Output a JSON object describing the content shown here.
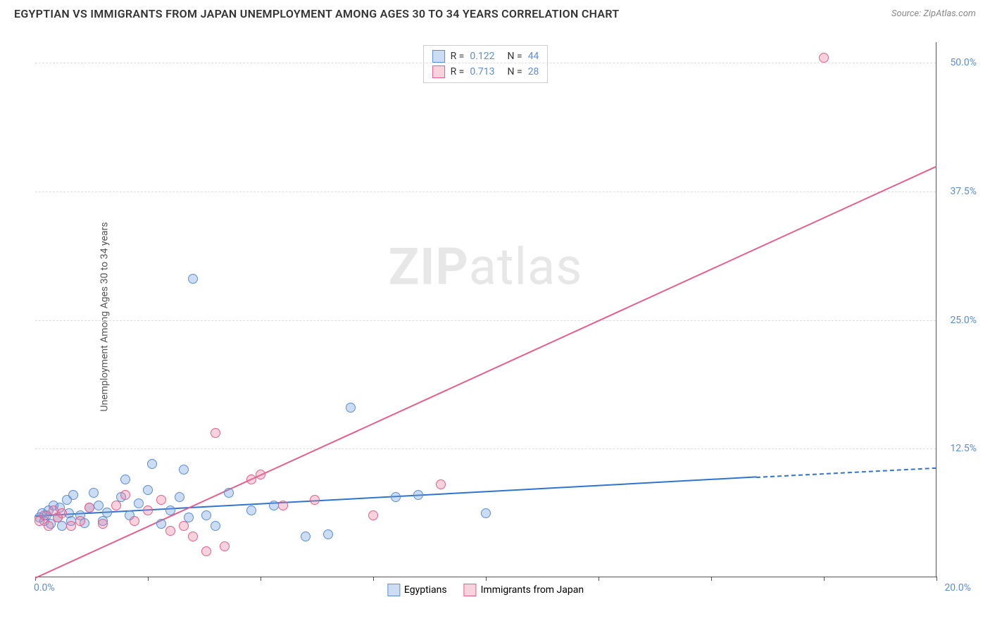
{
  "header": {
    "title": "EGYPTIAN VS IMMIGRANTS FROM JAPAN UNEMPLOYMENT AMONG AGES 30 TO 34 YEARS CORRELATION CHART",
    "source": "Source: ZipAtlas.com"
  },
  "chart": {
    "type": "scatter",
    "background_color": "#ffffff",
    "grid_color": "#dddddd",
    "axis_color": "#555555",
    "watermark_prefix": "ZIP",
    "watermark_suffix": "atlas",
    "y_axis_label": "Unemployment Among Ages 30 to 34 years",
    "y_axis_label_fontsize": 14,
    "xlim": [
      0,
      20
    ],
    "ylim": [
      0,
      52
    ],
    "x_ticks": [
      0,
      2.5,
      5,
      7.5,
      10,
      12.5,
      15,
      17.5,
      20
    ],
    "x_tick_labels": {
      "0": "0.0%",
      "20": "20.0%"
    },
    "y_ticks": [
      12.5,
      25,
      37.5,
      50
    ],
    "y_tick_labels": [
      "12.5%",
      "25.0%",
      "37.5%",
      "50.0%"
    ],
    "tick_label_color": "#5b8dd6",
    "tick_label_fontsize": 14,
    "series": [
      {
        "name": "Egyptians",
        "color_fill": "rgba(108,159,220,0.35)",
        "color_stroke": "#5b8dd6",
        "trend_color": "#2e74d0",
        "marker_size": 14,
        "R": "0.122",
        "N": "44",
        "trend": {
          "x1": 0,
          "y1": 6.0,
          "x2": 16,
          "y2": 9.8,
          "extend_x2": 20,
          "extend_y2": 10.7
        },
        "points": [
          [
            0.1,
            5.8
          ],
          [
            0.15,
            6.2
          ],
          [
            0.2,
            5.5
          ],
          [
            0.25,
            6.0
          ],
          [
            0.3,
            6.5
          ],
          [
            0.35,
            5.2
          ],
          [
            0.4,
            7.0
          ],
          [
            0.5,
            5.8
          ],
          [
            0.55,
            6.8
          ],
          [
            0.6,
            5.0
          ],
          [
            0.7,
            7.5
          ],
          [
            0.75,
            6.2
          ],
          [
            0.8,
            5.5
          ],
          [
            0.85,
            8.0
          ],
          [
            1.0,
            6.0
          ],
          [
            1.1,
            5.3
          ],
          [
            1.2,
            6.8
          ],
          [
            1.3,
            8.2
          ],
          [
            1.4,
            7.0
          ],
          [
            1.5,
            5.5
          ],
          [
            1.6,
            6.3
          ],
          [
            1.9,
            7.8
          ],
          [
            2.0,
            9.5
          ],
          [
            2.1,
            6.0
          ],
          [
            2.3,
            7.2
          ],
          [
            2.5,
            8.5
          ],
          [
            2.6,
            11.0
          ],
          [
            2.8,
            5.2
          ],
          [
            3.0,
            6.5
          ],
          [
            3.2,
            7.8
          ],
          [
            3.3,
            10.5
          ],
          [
            3.4,
            5.8
          ],
          [
            3.5,
            29.0
          ],
          [
            3.8,
            6.0
          ],
          [
            4.0,
            5.0
          ],
          [
            4.3,
            8.2
          ],
          [
            4.8,
            6.5
          ],
          [
            5.3,
            7.0
          ],
          [
            6.0,
            4.0
          ],
          [
            6.5,
            4.2
          ],
          [
            7.0,
            16.5
          ],
          [
            8.0,
            7.8
          ],
          [
            8.5,
            8.0
          ],
          [
            10.0,
            6.2
          ]
        ]
      },
      {
        "name": "Immigrants from Japan",
        "color_fill": "rgba(236,128,160,0.35)",
        "color_stroke": "#e85d8a",
        "trend_color": "#e85d8a",
        "marker_size": 14,
        "R": "0.713",
        "N": "28",
        "trend": {
          "x1": 0,
          "y1": 0,
          "x2": 20,
          "y2": 40.0,
          "extend_x2": 20,
          "extend_y2": 40.0
        },
        "points": [
          [
            0.1,
            5.5
          ],
          [
            0.2,
            6.0
          ],
          [
            0.3,
            5.0
          ],
          [
            0.4,
            6.5
          ],
          [
            0.5,
            5.8
          ],
          [
            0.6,
            6.2
          ],
          [
            0.8,
            5.0
          ],
          [
            1.0,
            5.5
          ],
          [
            1.2,
            6.8
          ],
          [
            1.5,
            5.2
          ],
          [
            1.8,
            7.0
          ],
          [
            2.0,
            8.0
          ],
          [
            2.2,
            5.5
          ],
          [
            2.5,
            6.5
          ],
          [
            2.8,
            7.5
          ],
          [
            3.0,
            4.5
          ],
          [
            3.3,
            5.0
          ],
          [
            3.5,
            4.0
          ],
          [
            3.8,
            2.5
          ],
          [
            4.0,
            14.0
          ],
          [
            4.2,
            3.0
          ],
          [
            4.8,
            9.5
          ],
          [
            5.0,
            10.0
          ],
          [
            5.5,
            7.0
          ],
          [
            6.2,
            7.5
          ],
          [
            7.5,
            6.0
          ],
          [
            9.0,
            9.0
          ],
          [
            17.5,
            50.5
          ]
        ]
      }
    ],
    "legend_bottom": [
      {
        "label": "Egyptians",
        "fill": "rgba(108,159,220,0.35)",
        "stroke": "#5b8dd6"
      },
      {
        "label": "Immigrants from Japan",
        "fill": "rgba(236,128,160,0.35)",
        "stroke": "#e85d8a"
      }
    ]
  }
}
